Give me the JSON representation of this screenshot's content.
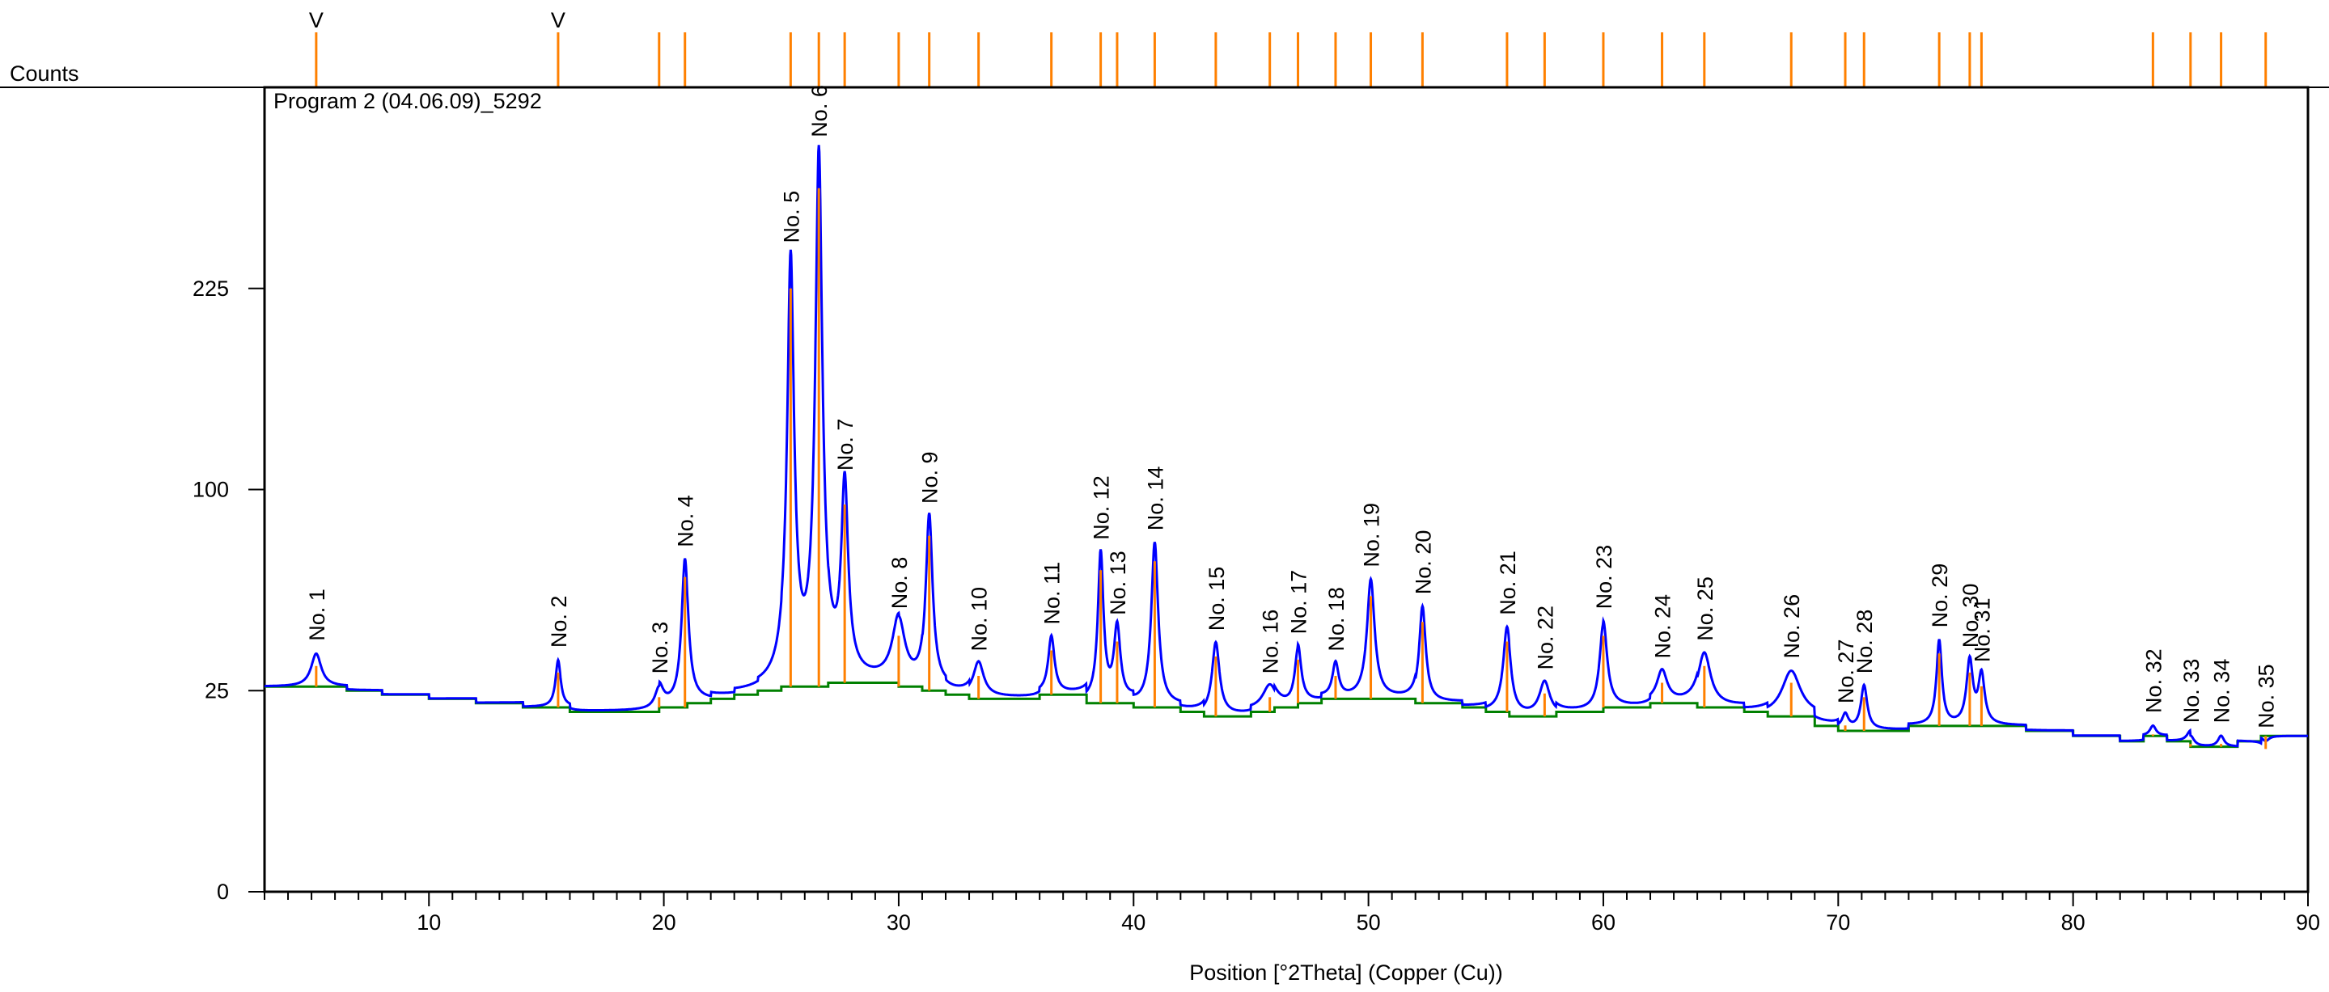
{
  "chart_data": {
    "type": "line",
    "title": "Program 2 (04.06.09)_5292",
    "xlabel": "Position [°2Theta] (Copper (Cu))",
    "ylabel": "Counts",
    "xlim": [
      3,
      90
    ],
    "ylim": [
      0,
      400
    ],
    "y_scale": "sqrt",
    "x_ticks": [
      10,
      20,
      30,
      40,
      50,
      60,
      70,
      80,
      90
    ],
    "y_ticks": [
      0,
      25,
      100,
      225
    ],
    "grid": false,
    "peak_marker_color": "#FF8000",
    "profile_color": "#0000FF",
    "background_color": "#008000",
    "peaks": [
      {
        "label": "No. 1",
        "x": 5.2,
        "y": 35,
        "fwhm": 0.5
      },
      {
        "label": "No. 2",
        "x": 15.5,
        "y": 33,
        "fwhm": 0.25
      },
      {
        "label": "No. 3",
        "x": 19.8,
        "y": 26,
        "fwhm": 0.4
      },
      {
        "label": "No. 4",
        "x": 20.9,
        "y": 68,
        "fwhm": 0.3
      },
      {
        "label": "No. 5",
        "x": 25.4,
        "y": 250,
        "fwhm": 0.28
      },
      {
        "label": "No. 6",
        "x": 26.6,
        "y": 340,
        "fwhm": 0.28
      },
      {
        "label": "No. 7",
        "x": 27.7,
        "y": 103,
        "fwhm": 0.3
      },
      {
        "label": "No. 8",
        "x": 30.0,
        "y": 45,
        "fwhm": 0.6
      },
      {
        "label": "No. 9",
        "x": 31.3,
        "y": 87,
        "fwhm": 0.3
      },
      {
        "label": "No. 10",
        "x": 33.4,
        "y": 32,
        "fwhm": 0.5
      },
      {
        "label": "No. 11",
        "x": 36.5,
        "y": 40,
        "fwhm": 0.3
      },
      {
        "label": "No. 12",
        "x": 38.6,
        "y": 71,
        "fwhm": 0.25
      },
      {
        "label": "No. 13",
        "x": 39.3,
        "y": 43,
        "fwhm": 0.3
      },
      {
        "label": "No. 14",
        "x": 40.9,
        "y": 75,
        "fwhm": 0.3
      },
      {
        "label": "No. 15",
        "x": 43.5,
        "y": 38,
        "fwhm": 0.35
      },
      {
        "label": "No. 16",
        "x": 45.8,
        "y": 26,
        "fwhm": 0.7
      },
      {
        "label": "No. 17",
        "x": 47.0,
        "y": 37,
        "fwhm": 0.3
      },
      {
        "label": "No. 18",
        "x": 48.6,
        "y": 32,
        "fwhm": 0.3
      },
      {
        "label": "No. 19",
        "x": 50.1,
        "y": 60,
        "fwhm": 0.35
      },
      {
        "label": "No. 20",
        "x": 52.3,
        "y": 50,
        "fwhm": 0.3
      },
      {
        "label": "No. 21",
        "x": 55.9,
        "y": 43,
        "fwhm": 0.35
      },
      {
        "label": "No. 22",
        "x": 57.5,
        "y": 27,
        "fwhm": 0.5
      },
      {
        "label": "No. 23",
        "x": 60.0,
        "y": 45,
        "fwhm": 0.35
      },
      {
        "label": "No. 24",
        "x": 62.5,
        "y": 30,
        "fwhm": 0.5
      },
      {
        "label": "No. 25",
        "x": 64.3,
        "y": 35,
        "fwhm": 0.6
      },
      {
        "label": "No. 26",
        "x": 68.0,
        "y": 30,
        "fwhm": 0.9
      },
      {
        "label": "No. 27",
        "x": 70.3,
        "y": 19,
        "fwhm": 0.3
      },
      {
        "label": "No. 28",
        "x": 71.1,
        "y": 26,
        "fwhm": 0.3
      },
      {
        "label": "No. 29",
        "x": 74.3,
        "y": 39,
        "fwhm": 0.25
      },
      {
        "label": "No. 30",
        "x": 75.6,
        "y": 33,
        "fwhm": 0.3
      },
      {
        "label": "No. 31",
        "x": 76.1,
        "y": 29,
        "fwhm": 0.3
      },
      {
        "label": "No. 32",
        "x": 83.4,
        "y": 17,
        "fwhm": 0.3
      },
      {
        "label": "No. 33",
        "x": 85.0,
        "y": 15,
        "fwhm": 0.35
      },
      {
        "label": "No. 34",
        "x": 86.3,
        "y": 15,
        "fwhm": 0.3
      },
      {
        "label": "No. 35",
        "x": 88.2,
        "y": 14,
        "fwhm": 0.35
      }
    ],
    "background": [
      [
        3,
        26
      ],
      [
        5.5,
        26
      ],
      [
        6.5,
        25
      ],
      [
        8,
        24
      ],
      [
        10,
        23
      ],
      [
        12,
        22
      ],
      [
        14,
        21
      ],
      [
        16,
        20
      ],
      [
        18,
        20
      ],
      [
        19.8,
        21
      ],
      [
        21,
        22
      ],
      [
        22,
        23
      ],
      [
        23,
        24
      ],
      [
        24,
        25
      ],
      [
        25,
        26
      ],
      [
        27,
        27
      ],
      [
        29,
        27
      ],
      [
        30,
        26
      ],
      [
        31,
        25
      ],
      [
        32,
        24
      ],
      [
        33,
        23
      ],
      [
        35,
        23
      ],
      [
        36,
        24
      ],
      [
        37,
        24
      ],
      [
        38,
        22
      ],
      [
        40,
        21
      ],
      [
        42,
        20
      ],
      [
        43,
        19
      ],
      [
        45,
        20
      ],
      [
        46,
        21
      ],
      [
        47,
        22
      ],
      [
        48,
        23
      ],
      [
        50,
        23
      ],
      [
        52,
        22
      ],
      [
        54,
        21
      ],
      [
        55,
        20
      ],
      [
        56,
        19
      ],
      [
        58,
        20
      ],
      [
        60,
        21
      ],
      [
        62,
        22
      ],
      [
        64,
        21
      ],
      [
        66,
        20
      ],
      [
        67,
        19
      ],
      [
        69,
        17
      ],
      [
        70,
        16
      ],
      [
        72,
        16
      ],
      [
        73,
        17
      ],
      [
        75,
        17
      ],
      [
        77,
        17
      ],
      [
        78,
        16
      ],
      [
        79,
        16
      ],
      [
        80,
        15
      ],
      [
        82,
        14
      ],
      [
        83,
        15
      ],
      [
        84,
        14
      ],
      [
        85,
        13
      ],
      [
        86,
        13
      ],
      [
        87,
        14
      ],
      [
        88,
        15
      ],
      [
        90,
        15
      ]
    ],
    "reference_markers": [
      {
        "x": 5.2,
        "flag": "V"
      },
      {
        "x": 15.5,
        "flag": "V"
      },
      {
        "x": 19.8
      },
      {
        "x": 20.9
      },
      {
        "x": 25.4
      },
      {
        "x": 26.6
      },
      {
        "x": 27.7
      },
      {
        "x": 30.0
      },
      {
        "x": 31.3
      },
      {
        "x": 33.4
      },
      {
        "x": 36.5
      },
      {
        "x": 38.6
      },
      {
        "x": 39.3
      },
      {
        "x": 40.9
      },
      {
        "x": 43.5
      },
      {
        "x": 45.8
      },
      {
        "x": 47.0
      },
      {
        "x": 48.6
      },
      {
        "x": 50.1
      },
      {
        "x": 52.3
      },
      {
        "x": 55.9
      },
      {
        "x": 57.5
      },
      {
        "x": 60.0
      },
      {
        "x": 62.5
      },
      {
        "x": 64.3
      },
      {
        "x": 68.0
      },
      {
        "x": 70.3
      },
      {
        "x": 71.1
      },
      {
        "x": 74.3
      },
      {
        "x": 75.6
      },
      {
        "x": 76.1
      },
      {
        "x": 83.4
      },
      {
        "x": 85.0
      },
      {
        "x": 86.3
      },
      {
        "x": 88.2
      }
    ]
  }
}
